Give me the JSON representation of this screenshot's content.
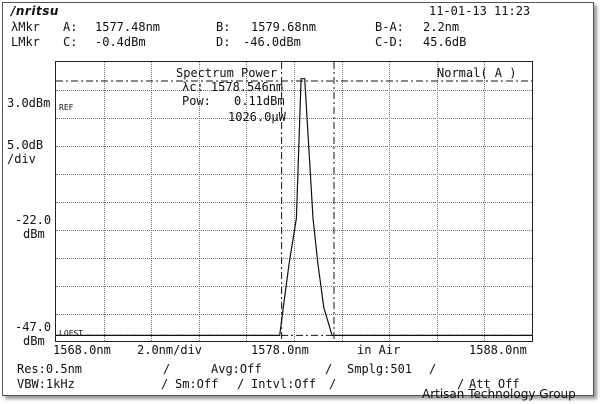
{
  "header": {
    "brand": "/nritsu",
    "datetime": "11-01-13 11:23",
    "row1": {
      "label": "λMkr",
      "a_label": "A:",
      "a_value": "1577.48nm",
      "b_label": "B:",
      "b_value": "1579.68nm",
      "ba_label": "B-A:",
      "ba_value": "2.2nm"
    },
    "row2": {
      "label": "LMkr",
      "c_label": "C:",
      "c_value": "-0.4dBm",
      "d_label": "D:",
      "d_value": "-46.0dBm",
      "cd_label": "C-D:",
      "cd_value": "45.6dB"
    }
  },
  "plot": {
    "measurement_title": "Spectrum Power",
    "center_wl": "λc: 1578.546nm",
    "power_label": "Pow:",
    "power_value": "0.11dBm",
    "power_uw": "1026.0μW",
    "mode": "Normal( A )",
    "ref_tag": "REF",
    "lofst_tag": "LOFST"
  },
  "y_axis": {
    "top": "3.0dBm",
    "scale": "5.0dB",
    "scale_unit": "/div",
    "mid_value": "-22.0",
    "mid_unit": "dBm",
    "bottom_value": "-47.0",
    "bottom_unit": "dBm"
  },
  "x_axis": {
    "start": "1568.0nm",
    "span": "2.0nm/div",
    "center": "1578.0nm",
    "medium": "in Air",
    "stop": "1588.0nm"
  },
  "footer": {
    "res": "Res:0.5nm",
    "avg": "Avg:Off",
    "smplg": "Smplg:501",
    "vbw": "VBW:1kHz",
    "sm": "Sm:Off",
    "intvl": "Intvl:Off",
    "att": "Att Off",
    "watermark": "Artisan Technology Group"
  },
  "chart_data": {
    "type": "line",
    "xlim": [
      1568.0,
      1588.0
    ],
    "ylim": [
      -47.0,
      3.0
    ],
    "grid": true,
    "series": [
      {
        "x": [
          1568.0,
          1570.0,
          1572.0,
          1574.0,
          1576.0,
          1577.4,
          1577.55,
          1577.8,
          1578.1,
          1578.3,
          1578.45,
          1578.8,
          1579.0,
          1579.25,
          1579.6,
          1579.75,
          1581.0,
          1583.0,
          1585.0,
          1588.0
        ],
        "y": [
          -46.0,
          -46.0,
          -46.0,
          -46.0,
          -46.0,
          -46.0,
          -41.0,
          -33.0,
          -25.0,
          0.0,
          0.0,
          -25.0,
          -33.0,
          -41.0,
          -46.0,
          -46.0,
          -46.0,
          -46.0,
          -46.0,
          -46.0
        ]
      }
    ],
    "markers": {
      "A_nm": 1577.48,
      "B_nm": 1579.68,
      "C_dBm": -0.4,
      "D_dBm": -46.0
    }
  }
}
